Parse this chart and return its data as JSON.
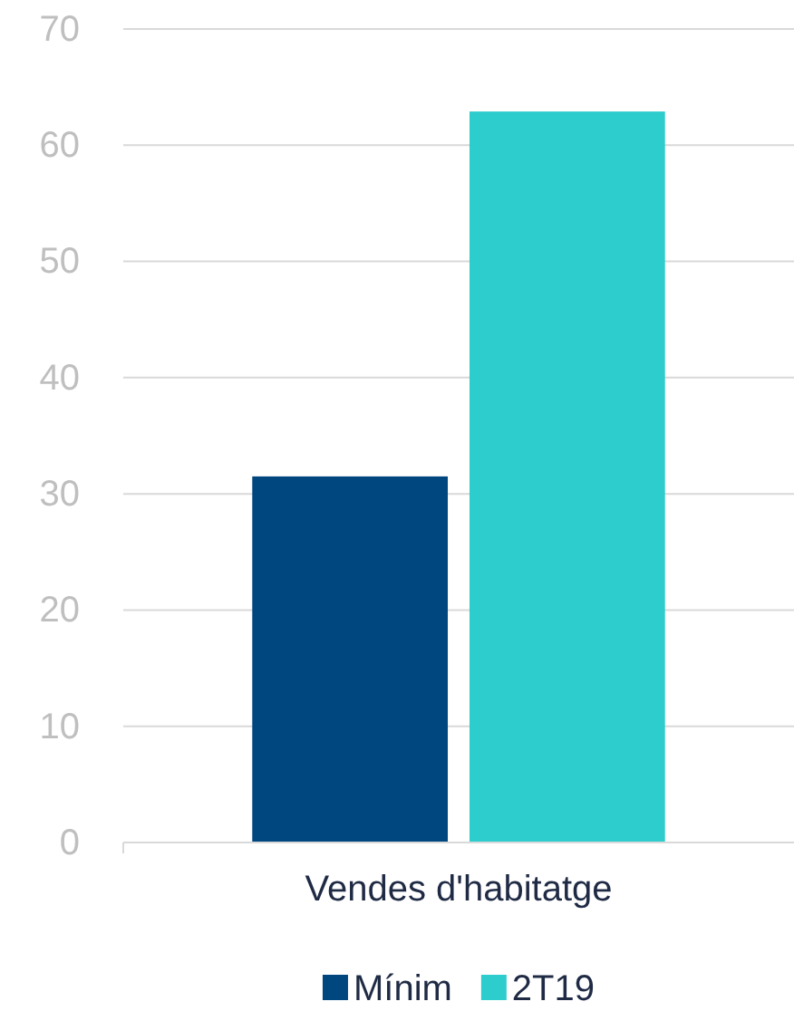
{
  "chart_data": {
    "type": "bar",
    "categories": [
      "Vendes d'habitatge"
    ],
    "series": [
      {
        "name": "Mínim",
        "color": "#00467f",
        "values": [
          31.5
        ]
      },
      {
        "name": "2T19",
        "color": "#2ecdcd",
        "values": [
          62.9
        ]
      }
    ],
    "ylim": [
      0,
      70
    ],
    "yticks": [
      0,
      10,
      20,
      30,
      40,
      50,
      60,
      70
    ],
    "grid": "y",
    "legend": "bottom"
  }
}
